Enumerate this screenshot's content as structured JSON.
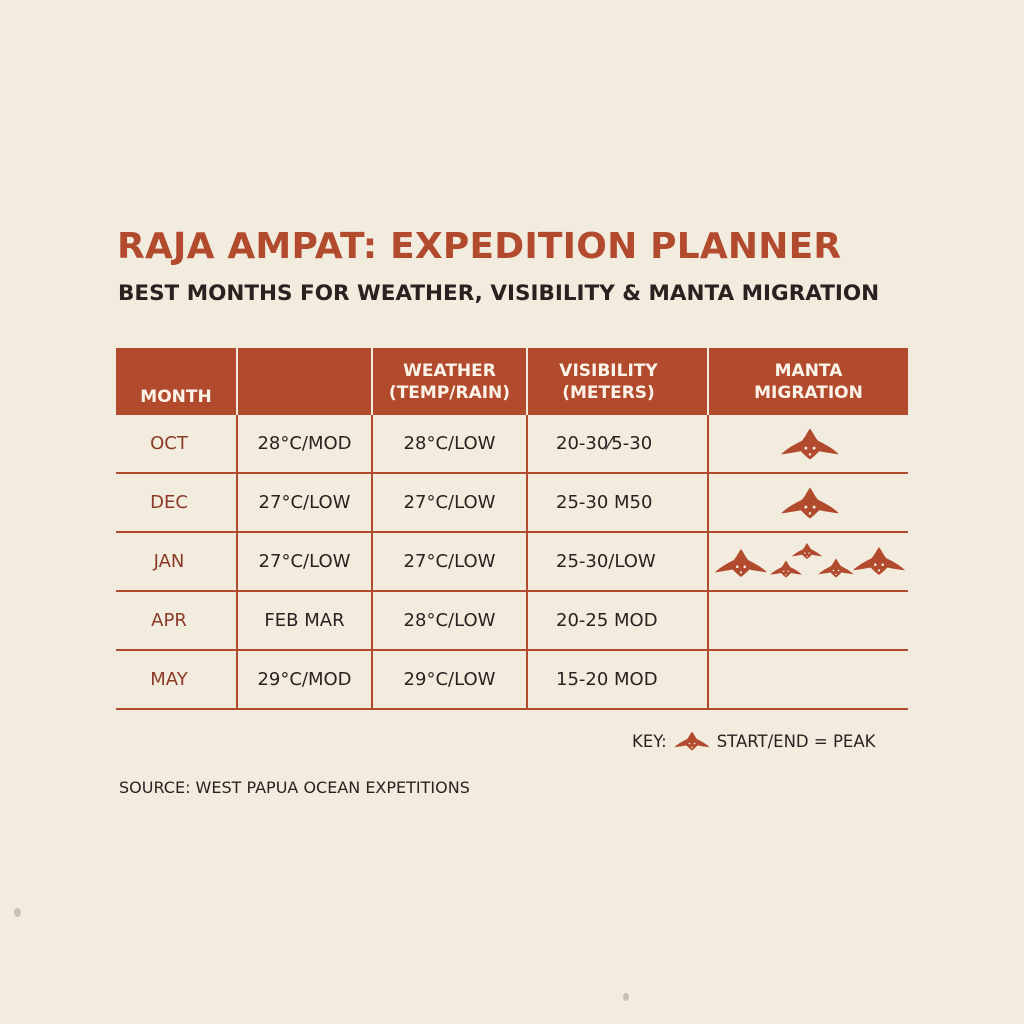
{
  "title": "RAJA AMPAT: EXPEDITION PLANNER",
  "subtitle": "BEST MONTHS FOR WEATHER, VISIBILITY & MANTA MIGRATION",
  "colors": {
    "accent": "#b24a2e",
    "background": "#f2ecdf",
    "text": "#2a2220"
  },
  "table": {
    "headers": {
      "month": "MONTH",
      "blank": "",
      "weather_line1": "WEATHER",
      "weather_line2": "(TEMP/RAIN)",
      "visibility_line1": "VISIBILITY",
      "visibility_line2": "(METERS)",
      "manta_line1": "MANTA",
      "manta_line2": "MIGRATION"
    },
    "rows": [
      {
        "month": "OCT",
        "col2": "28°C/MOD",
        "weather": "28°C/LOW",
        "visibility": "20-30⁄5-30",
        "manta_icon": "manta-ray-icon",
        "manta_count": 1
      },
      {
        "month": "DEC",
        "col2": "27°C/LOW",
        "weather": "27°C/LOW",
        "visibility": "25-30 M50",
        "manta_icon": "manta-ray-icon",
        "manta_count": 1
      },
      {
        "month": "JAN",
        "col2": "27°C/LOW",
        "weather": "27°C/LOW",
        "visibility": "25-30/LOW",
        "manta_icon": "manta-ray-icon",
        "manta_count": 5
      },
      {
        "month": "APR",
        "col2": "FEB MAR",
        "weather": "28°C/LOW",
        "visibility": "20-25 MOD",
        "manta_icon": "",
        "manta_count": 0
      },
      {
        "month": "MAY",
        "col2": "29°C/MOD",
        "weather": "29°C/LOW",
        "visibility": "15-20 MOD",
        "manta_icon": "",
        "manta_count": 0
      }
    ]
  },
  "key": {
    "label": "KEY:",
    "icon": "manta-ray-icon",
    "text": "START/END = PEAK"
  },
  "source": "SOURCE: WEST PAPUA OCEAN EXPETITIONS"
}
